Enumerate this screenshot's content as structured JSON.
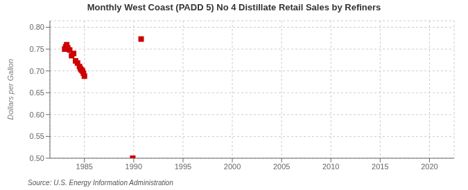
{
  "chart_data": {
    "type": "scatter",
    "title": "Monthly West Coast (PADD 5) No 4 Distillate Retail Sales by Refiners",
    "y_label": "Dollars per Gallon",
    "annotations": [
      "Source: U.S. Energy Information Administration"
    ],
    "x": [
      1983.0,
      1983.1,
      1983.2,
      1983.3,
      1983.5,
      1983.7,
      1983.9,
      1984.1,
      1984.3,
      1984.5,
      1984.6,
      1984.7,
      1984.8,
      1984.9,
      1985.0,
      1989.9,
      1990.75
    ],
    "values": [
      0.75,
      0.755,
      0.76,
      0.753,
      0.748,
      0.735,
      0.74,
      0.723,
      0.718,
      0.71,
      0.705,
      0.702,
      0.7,
      0.695,
      0.688,
      0.5,
      0.773
    ],
    "color": "#cc0000",
    "marker": "square",
    "xlim": [
      1981.5,
      2022.5
    ],
    "ylim": [
      0.5,
      0.815
    ],
    "xticks": [
      1985,
      1990,
      1995,
      2000,
      2005,
      2010,
      2015,
      2020
    ],
    "yticks": [
      {
        "value": 0.5,
        "label": "0.50"
      },
      0.55,
      {
        "value": 0.6,
        "label": "0.60"
      },
      0.65,
      {
        "value": 0.7,
        "label": "0.70"
      },
      0.75,
      {
        "value": 0.8,
        "label": "0.80"
      }
    ],
    "grid": true
  }
}
